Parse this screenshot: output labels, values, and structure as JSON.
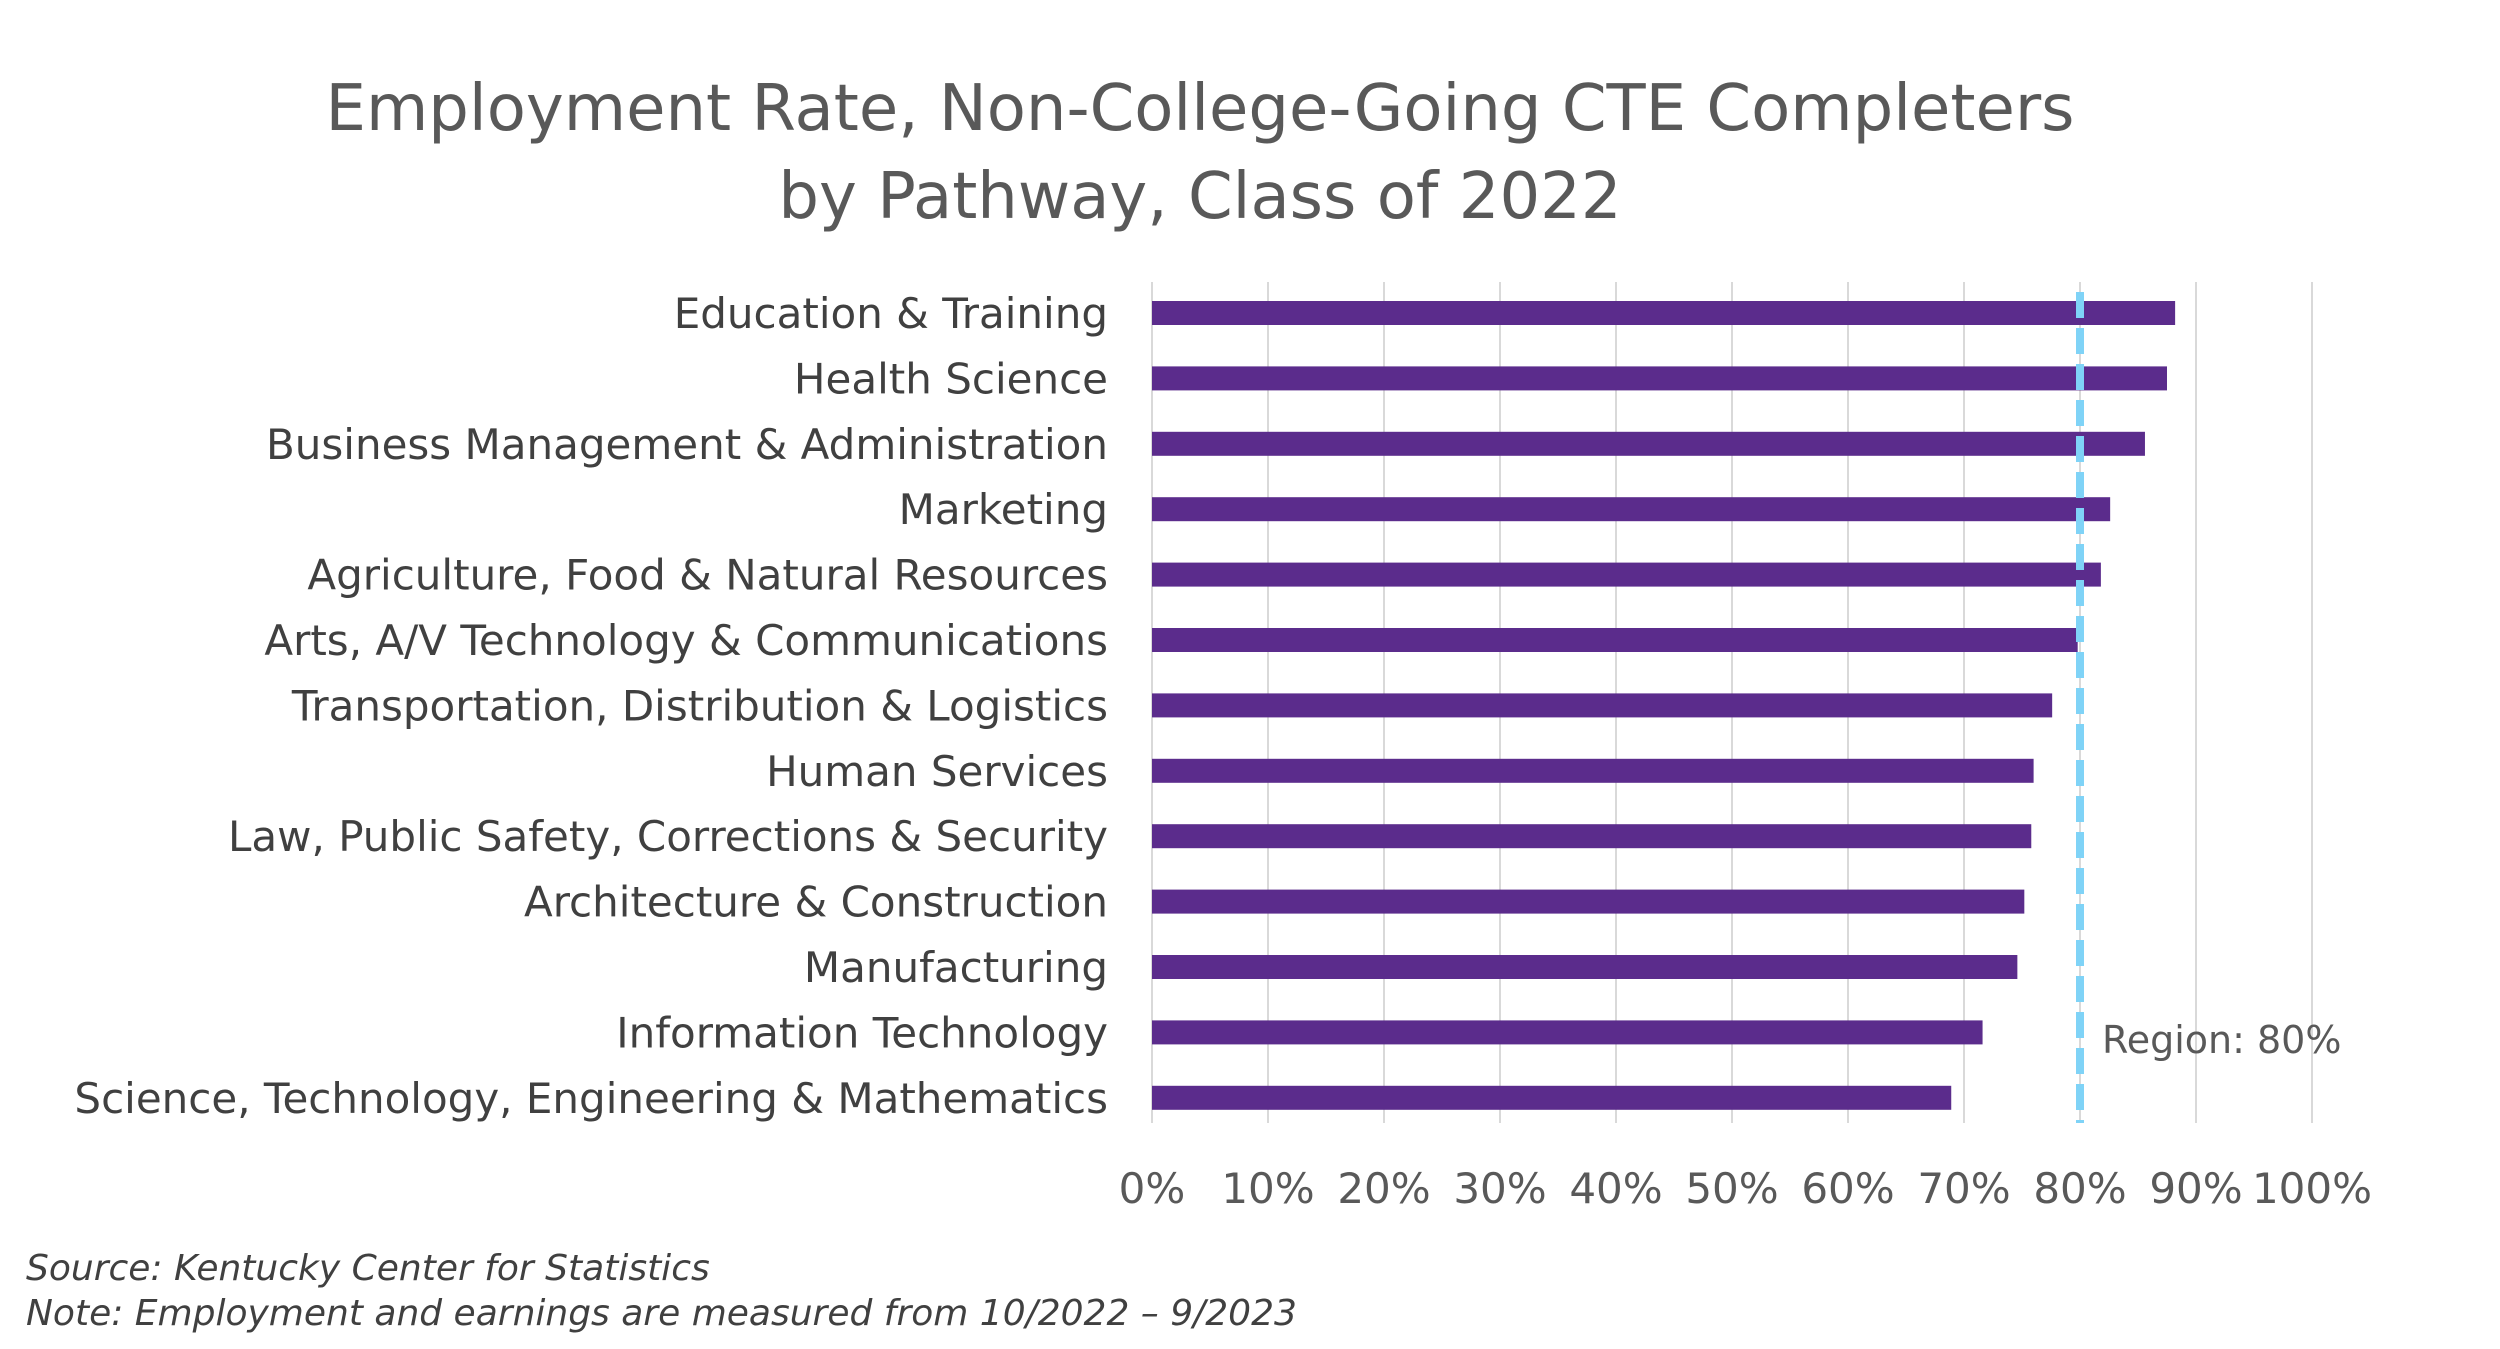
{
  "chart_data": {
    "type": "bar",
    "orientation": "horizontal",
    "title": "Employment Rate, Non-College-Going CTE Completers by Pathway, Class of 2022",
    "title_lines": [
      "Employment Rate, Non-College-Going CTE Completers",
      "by Pathway, Class of 2022"
    ],
    "categories": [
      "Education & Training",
      "Health Science",
      "Business Management & Administration",
      "Marketing",
      "Agriculture, Food & Natural Resources",
      "Arts, A/V Technology & Communications",
      "Transportation, Distribution & Logistics",
      "Human Services",
      "Law, Public Safety, Corrections & Security",
      "Architecture & Construction",
      "Manufacturing",
      "Information Technology",
      "Science, Technology, Engineering & Mathematics"
    ],
    "values": [
      88.2,
      87.5,
      85.6,
      82.6,
      81.8,
      79.8,
      77.6,
      76.0,
      75.8,
      75.2,
      74.6,
      71.6,
      68.9
    ],
    "xlim": [
      0,
      100
    ],
    "x_ticks": [
      0,
      10,
      20,
      30,
      40,
      50,
      60,
      70,
      80,
      90,
      100
    ],
    "x_tick_labels": [
      "0%",
      "10%",
      "20%",
      "30%",
      "40%",
      "50%",
      "60%",
      "70%",
      "80%",
      "90%",
      "100%"
    ],
    "xlabel": "",
    "ylabel": "",
    "grid": true,
    "legend": "none",
    "reference_line": {
      "value": 80,
      "label": "Region: 80%",
      "style": "dashed"
    },
    "colors": {
      "bar": "#5B2C8C",
      "reference_line": "#7FD3F7",
      "grid": "#D9D9D9"
    }
  },
  "footnotes": {
    "source": "Source: Kentucky Center for Statistics",
    "note": "Note: Employment and earnings are measured from 10/2022 – 9/2023"
  }
}
